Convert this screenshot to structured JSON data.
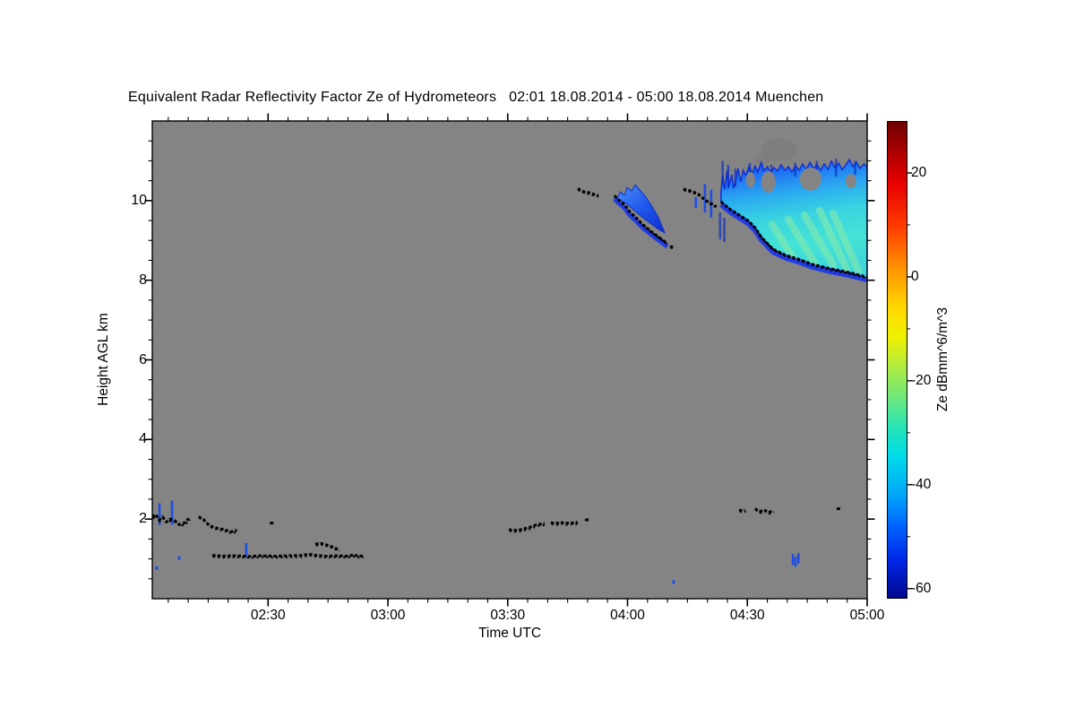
{
  "title": "Equivalent Radar Reflectivity Factor Ze of Hydrometeors   02:01 18.08.2014 - 05:00 18.08.2014 Muenchen",
  "station": "Muenchen",
  "time_span": "02:01 18.08.2014 - 05:00 18.08.2014",
  "colors": {
    "plot_bg": "#848484",
    "trace_black": "#000000",
    "cloud_blue": "#1540E2",
    "cloud_mid_blue": "#2378F2",
    "cloud_cyan": "#3CD8DE",
    "streak_green": "#8DEBA6",
    "fringe_blue": "#1C38E8",
    "liquid_blue": "#1D4FE8",
    "smudge_gray": "#787878"
  },
  "chart_data": {
    "type": "heatmap",
    "title": "Equivalent Radar Reflectivity Factor Ze of Hydrometeors",
    "x": {
      "label": "Time UTC",
      "range_hours": [
        2.0167,
        5.0
      ],
      "major_tick_hours": [
        2.5,
        3.0,
        3.5,
        4.0,
        4.5,
        5.0
      ],
      "tick_labels": [
        "02:30",
        "03:00",
        "03:30",
        "04:00",
        "04:30",
        "05:00"
      ],
      "minor_step_minutes": 5
    },
    "y": {
      "label": "Height AGL km",
      "range_km": [
        0,
        12
      ],
      "major_ticks": [
        2,
        4,
        6,
        8,
        10
      ],
      "tick_labels": [
        "2",
        "4",
        "6",
        "8",
        "10"
      ],
      "minor_step_km": 0.5
    },
    "colorbar": {
      "label": "Ze dBmm^6/m^3",
      "unit": "dBmm^6/m^3",
      "value_range": [
        -61.6,
        30
      ],
      "tick_values": [
        20,
        0,
        -20,
        -40,
        -60
      ],
      "tick_labels": [
        "20",
        "0",
        "-20",
        "-40",
        "-60"
      ],
      "minor_tick_values": [
        10,
        -10,
        -30,
        -50
      ],
      "colormap": "rainbow (dark red high to dark blue low)"
    },
    "background_meaning": "gray = no hydrometeor signal",
    "features": {
      "cloud_base_traces": [
        {
          "name": "low-base-0201-0210",
          "fringe": false,
          "points": [
            [
              2.017,
              2.05
            ],
            [
              2.03,
              2.12
            ],
            [
              2.045,
              1.98
            ],
            [
              2.06,
              2.05
            ],
            [
              2.075,
              1.93
            ],
            [
              2.09,
              2.0
            ],
            [
              2.11,
              1.96
            ],
            [
              2.13,
              1.86
            ],
            [
              2.15,
              1.9
            ],
            [
              2.17,
              2.02
            ]
          ]
        },
        {
          "name": "low-base-0212-0222",
          "fringe": false,
          "points": [
            [
              2.21,
              2.06
            ],
            [
              2.23,
              1.99
            ],
            [
              2.255,
              1.84
            ],
            [
              2.275,
              1.79
            ],
            [
              2.32,
              1.73
            ],
            [
              2.345,
              1.68
            ],
            [
              2.37,
              1.72
            ]
          ]
        },
        {
          "name": "dot-0231",
          "fringe": false,
          "points": [
            [
              2.515,
              1.9
            ]
          ]
        },
        {
          "name": "low-line-0216-0254",
          "fringe": false,
          "points": [
            [
              2.267,
              1.09
            ],
            [
              2.31,
              1.07
            ],
            [
              2.36,
              1.08
            ],
            [
              2.42,
              1.06
            ],
            [
              2.47,
              1.08
            ],
            [
              2.53,
              1.07
            ],
            [
              2.59,
              1.08
            ],
            [
              2.64,
              1.09
            ],
            [
              2.67,
              1.12
            ],
            [
              2.7,
              1.09
            ],
            [
              2.74,
              1.07
            ],
            [
              2.79,
              1.08
            ],
            [
              2.83,
              1.07
            ],
            [
              2.86,
              1.1
            ],
            [
              2.88,
              1.06
            ],
            [
              2.895,
              1.08
            ]
          ]
        },
        {
          "name": "low-bump-0242-0248",
          "fringe": false,
          "points": [
            [
              2.697,
              1.37
            ],
            [
              2.72,
              1.39
            ],
            [
              2.745,
              1.35
            ],
            [
              2.764,
              1.31
            ],
            [
              2.783,
              1.26
            ],
            [
              2.794,
              1.23
            ]
          ]
        },
        {
          "name": "mid-base-0330-0339",
          "fringe": false,
          "points": [
            [
              3.505,
              1.74
            ],
            [
              3.52,
              1.71
            ],
            [
              3.55,
              1.73
            ],
            [
              3.59,
              1.79
            ],
            [
              3.62,
              1.86
            ],
            [
              3.654,
              1.89
            ]
          ]
        },
        {
          "name": "mid-base-0341-0348",
          "fringe": false,
          "points": [
            [
              3.68,
              1.91
            ],
            [
              3.7,
              1.89
            ],
            [
              3.72,
              1.92
            ],
            [
              3.74,
              1.89
            ],
            [
              3.757,
              1.91
            ],
            [
              3.775,
              1.9
            ],
            [
              3.792,
              1.92
            ]
          ]
        },
        {
          "name": "dot-0350",
          "fringe": false,
          "points": [
            [
              3.83,
              1.98
            ]
          ]
        },
        {
          "name": "cirrus-top-0347",
          "fringe": false,
          "points": [
            [
              3.792,
              10.3
            ],
            [
              3.806,
              10.26
            ],
            [
              3.822,
              10.21
            ],
            [
              3.84,
              10.2
            ],
            [
              3.858,
              10.16
            ],
            [
              3.878,
              10.13
            ]
          ]
        },
        {
          "name": "sail-cloud-base",
          "fringe": true,
          "points": [
            [
              3.945,
              10.13
            ],
            [
              3.962,
              10.02
            ],
            [
              3.987,
              9.9
            ],
            [
              4.009,
              9.72
            ],
            [
              4.035,
              9.57
            ],
            [
              4.061,
              9.41
            ],
            [
              4.091,
              9.26
            ],
            [
              4.121,
              9.12
            ],
            [
              4.147,
              9.01
            ],
            [
              4.166,
              8.92
            ]
          ]
        },
        {
          "name": "sail-cloud-base-tail",
          "fringe": false,
          "points": [
            [
              4.177,
              8.85
            ],
            [
              4.192,
              8.82
            ]
          ]
        },
        {
          "name": "pre-anvil-dots",
          "fringe": false,
          "points": [
            [
              4.233,
              10.29
            ],
            [
              4.259,
              10.25
            ],
            [
              4.281,
              10.2
            ],
            [
              4.296,
              10.16
            ],
            [
              4.319,
              10.04
            ],
            [
              4.341,
              9.95
            ],
            [
              4.36,
              9.89
            ],
            [
              4.371,
              9.84
            ]
          ]
        },
        {
          "name": "anvil-cloud-base",
          "fringe": true,
          "points": [
            [
              4.39,
              9.97
            ],
            [
              4.427,
              9.79
            ],
            [
              4.465,
              9.64
            ],
            [
              4.502,
              9.5
            ],
            [
              4.532,
              9.32
            ],
            [
              4.558,
              9.08
            ],
            [
              4.607,
              8.78
            ],
            [
              4.659,
              8.63
            ],
            [
              4.708,
              8.54
            ],
            [
              4.772,
              8.4
            ],
            [
              4.846,
              8.29
            ],
            [
              4.921,
              8.2
            ],
            [
              5.0,
              8.08
            ]
          ]
        },
        {
          "name": "low-dash-0428",
          "fringe": false,
          "points": [
            [
              4.465,
              2.22
            ],
            [
              4.49,
              2.22
            ]
          ]
        },
        {
          "name": "low-dash-0432-0436",
          "fringe": false,
          "points": [
            [
              4.532,
              2.26
            ],
            [
              4.551,
              2.19
            ],
            [
              4.57,
              2.23
            ],
            [
              4.59,
              2.17
            ],
            [
              4.607,
              2.21
            ]
          ]
        },
        {
          "name": "dot-0453",
          "fringe": false,
          "points": [
            [
              4.88,
              2.26
            ]
          ]
        }
      ],
      "liquid_marks": [
        {
          "type": "vline",
          "t": 2.047,
          "h1": 1.85,
          "h2": 2.4
        },
        {
          "type": "vline",
          "t": 2.099,
          "h1": 1.86,
          "h2": 2.46
        },
        {
          "type": "dot",
          "t": 2.129,
          "h": 1.02
        },
        {
          "type": "vline",
          "t": 2.409,
          "h1": 1.06,
          "h2": 1.4
        },
        {
          "type": "dot",
          "t": 2.035,
          "h": 0.77
        },
        {
          "type": "dot",
          "t": 4.192,
          "h": 0.42
        },
        {
          "type": "vline",
          "t": 4.69,
          "h1": 0.85,
          "h2": 1.12
        },
        {
          "type": "vline",
          "t": 4.701,
          "h1": 0.8,
          "h2": 1.05
        },
        {
          "type": "vline",
          "t": 4.713,
          "h1": 0.88,
          "h2": 1.15
        },
        {
          "type": "vline",
          "t": 4.285,
          "h1": 9.82,
          "h2": 10.09
        },
        {
          "type": "vline",
          "t": 4.323,
          "h1": 9.7,
          "h2": 10.42
        },
        {
          "type": "vline",
          "t": 4.349,
          "h1": 9.57,
          "h2": 10.27
        }
      ],
      "mid_cloud": {
        "outline": [
          [
            3.956,
            10.06
          ],
          [
            3.971,
            10.22
          ],
          [
            3.987,
            10.13
          ],
          [
            3.998,
            10.33
          ],
          [
            4.017,
            10.24
          ],
          [
            4.032,
            10.4
          ],
          [
            4.047,
            10.29
          ],
          [
            4.061,
            10.2
          ],
          [
            4.08,
            10.06
          ],
          [
            4.099,
            9.88
          ],
          [
            4.114,
            9.73
          ],
          [
            4.129,
            9.57
          ],
          [
            4.14,
            9.41
          ],
          [
            4.151,
            9.26
          ],
          [
            4.155,
            9.19
          ],
          [
            4.129,
            9.28
          ],
          [
            4.099,
            9.41
          ],
          [
            4.069,
            9.55
          ],
          [
            4.039,
            9.7
          ],
          [
            4.009,
            9.86
          ],
          [
            3.983,
            9.97
          ]
        ]
      },
      "big_cloud": {
        "outline": [
          [
            4.39,
            10.2
          ],
          [
            4.397,
            10.63
          ],
          [
            4.405,
            10.27
          ],
          [
            4.416,
            10.76
          ],
          [
            4.423,
            10.36
          ],
          [
            4.435,
            10.65
          ],
          [
            4.442,
            10.31
          ],
          [
            4.453,
            10.54
          ],
          [
            4.461,
            10.81
          ],
          [
            4.472,
            10.47
          ],
          [
            4.483,
            10.76
          ],
          [
            4.494,
            10.63
          ],
          [
            4.506,
            10.85
          ],
          [
            4.521,
            10.69
          ],
          [
            4.532,
            10.87
          ],
          [
            4.543,
            10.72
          ],
          [
            4.558,
            10.96
          ],
          [
            4.569,
            10.76
          ],
          [
            4.584,
            10.85
          ],
          [
            4.596,
            10.69
          ],
          [
            4.611,
            10.83
          ],
          [
            4.626,
            10.74
          ],
          [
            4.641,
            10.9
          ],
          [
            4.656,
            10.76
          ],
          [
            4.671,
            10.85
          ],
          [
            4.686,
            10.72
          ],
          [
            4.701,
            10.87
          ],
          [
            4.716,
            10.76
          ],
          [
            4.731,
            10.92
          ],
          [
            4.746,
            10.78
          ],
          [
            4.761,
            10.96
          ],
          [
            4.776,
            10.81
          ],
          [
            4.791,
            10.9
          ],
          [
            4.806,
            10.76
          ],
          [
            4.821,
            10.92
          ],
          [
            4.836,
            10.78
          ],
          [
            4.851,
            10.99
          ],
          [
            4.866,
            10.83
          ],
          [
            4.881,
            10.94
          ],
          [
            4.896,
            10.78
          ],
          [
            4.911,
            10.9
          ],
          [
            4.926,
            11.03
          ],
          [
            4.941,
            10.85
          ],
          [
            4.956,
            10.96
          ],
          [
            4.971,
            10.81
          ],
          [
            4.986,
            10.92
          ],
          [
            5.0,
            10.85
          ],
          [
            5.0,
            8.06
          ],
          [
            4.921,
            8.2
          ],
          [
            4.846,
            8.29
          ],
          [
            4.772,
            8.4
          ],
          [
            4.708,
            8.54
          ],
          [
            4.659,
            8.63
          ],
          [
            4.607,
            8.78
          ],
          [
            4.558,
            9.08
          ],
          [
            4.532,
            9.32
          ],
          [
            4.502,
            9.5
          ],
          [
            4.465,
            9.64
          ],
          [
            4.427,
            9.79
          ],
          [
            4.39,
            9.97
          ]
        ],
        "holes": [
          {
            "t": 4.588,
            "h": 10.47,
            "rt": 0.03,
            "rh": 0.27
          },
          {
            "t": 4.764,
            "h": 10.54,
            "rt": 0.045,
            "rh": 0.29
          },
          {
            "t": 4.932,
            "h": 10.49,
            "rt": 0.022,
            "rh": 0.18
          },
          {
            "t": 4.513,
            "h": 10.52,
            "rt": 0.019,
            "rh": 0.2
          }
        ],
        "bright_streaks": [
          [
            4.671,
            9.53,
            4.791,
            8.33
          ],
          [
            4.738,
            9.64,
            4.858,
            8.38
          ],
          [
            4.802,
            9.75,
            4.914,
            8.29
          ],
          [
            4.858,
            9.68,
            4.963,
            8.24
          ],
          [
            4.603,
            9.41,
            4.701,
            8.47
          ]
        ],
        "dark_streaks": [
          [
            4.386,
            9.7,
            9.03
          ],
          [
            4.404,
            9.57,
            8.96
          ],
          [
            4.397,
            11.0,
            10.4
          ],
          [
            4.42,
            10.9,
            10.3
          ],
          [
            4.45,
            10.8,
            10.35
          ],
          [
            4.51,
            10.95,
            10.5
          ],
          [
            4.6,
            10.9,
            10.55
          ],
          [
            4.7,
            10.95,
            10.6
          ],
          [
            4.79,
            11.0,
            10.55
          ],
          [
            4.87,
            11.05,
            10.6
          ],
          [
            4.95,
            11.0,
            10.65
          ]
        ],
        "smudges": [
          {
            "t": 4.633,
            "h": 11.28,
            "rt": 0.075,
            "rh": 0.28,
            "opacity": 0.5
          },
          {
            "t": 4.56,
            "h": 11.05,
            "rt": 0.035,
            "rh": 0.15,
            "opacity": 0.4
          }
        ]
      }
    }
  }
}
